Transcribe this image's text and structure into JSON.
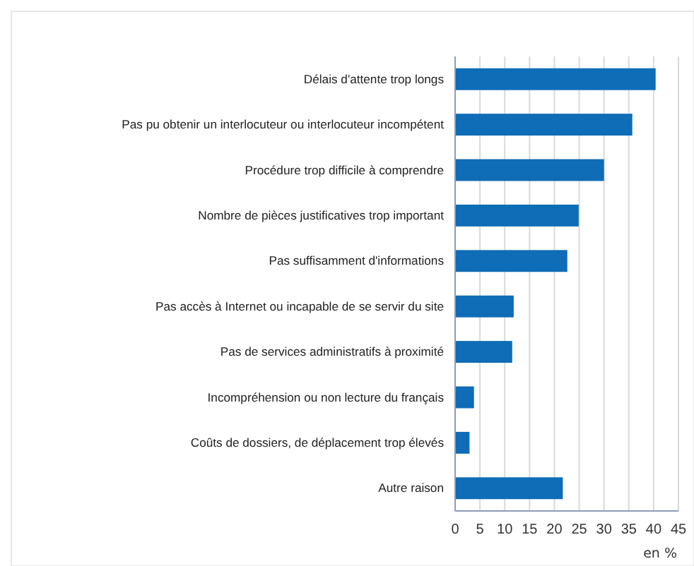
{
  "chart_data": {
    "type": "bar",
    "orientation": "horizontal",
    "categories": [
      "Délais d'attente trop longs",
      "Pas pu obtenir un interlocuteur ou interlocuteur incompétent",
      "Procédure trop difficile à comprendre",
      "Nombre de pièces justificatives trop important",
      "Pas suffisamment d'informations",
      "Pas accès à Internet ou incapable de se servir du site",
      "Pas de services administratifs à proximité",
      "Incompréhension ou non lecture du français",
      "Coûts de dossiers, de déplacement trop élevés",
      "Autre raison"
    ],
    "values": [
      40.4,
      35.7,
      30,
      24.9,
      22.6,
      11.8,
      11.5,
      3.8,
      2.9,
      21.7
    ],
    "color": "#0f6cb6",
    "xlabel": "en %",
    "xlim": [
      0,
      45
    ],
    "xticks": [
      0,
      5,
      10,
      15,
      20,
      25,
      30,
      35,
      40,
      45
    ],
    "grid": "x"
  }
}
